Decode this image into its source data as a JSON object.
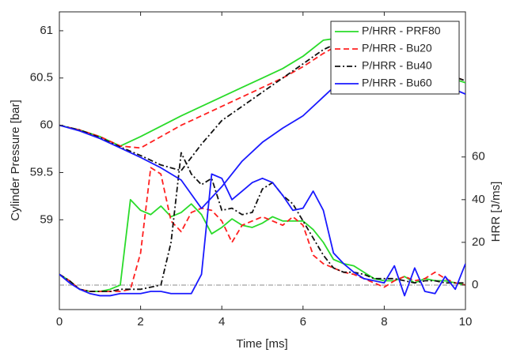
{
  "chart_data": {
    "type": "line",
    "xlabel": "Time [ms]",
    "ylabel": "Cylinder Pressure [bar]",
    "y2label": "HRR [J/ms]",
    "xlim": [
      0,
      10
    ],
    "xticks": [
      0,
      2,
      4,
      6,
      8,
      10
    ],
    "ylim": [
      58.05,
      61.2
    ],
    "yticks": [
      59,
      59.5,
      60,
      60.5,
      61
    ],
    "y2lim": [
      -11.5,
      128
    ],
    "y2ticks": [
      0,
      20,
      40,
      60
    ],
    "legend": "upper right",
    "x": [
      0,
      0.5,
      1,
      1.5,
      2,
      2.5,
      3,
      3.5,
      4,
      4.5,
      5,
      5.5,
      6,
      6.5,
      7,
      7.5,
      8,
      8.5,
      9,
      9.5,
      10
    ],
    "x2": [
      0,
      0.25,
      0.5,
      0.75,
      1,
      1.25,
      1.5,
      1.75,
      2,
      2.25,
      2.5,
      2.75,
      3,
      3.25,
      3.5,
      3.75,
      4,
      4.25,
      4.5,
      4.75,
      5,
      5.25,
      5.5,
      5.75,
      6,
      6.25,
      6.5,
      6.75,
      7,
      7.25,
      7.5,
      7.75,
      8,
      8.25,
      8.5,
      8.75,
      9,
      9.25,
      9.5,
      9.75,
      10
    ],
    "series": [
      {
        "name": "P/HRR - PRF80",
        "color": "#2adb2a",
        "dash": "solid",
        "values": [
          60,
          59.95,
          59.88,
          59.78,
          59.88,
          59.99,
          60.1,
          60.2,
          60.3,
          60.4,
          60.5,
          60.6,
          60.73,
          60.9,
          60.93,
          60.85,
          60.77,
          60.68,
          60.6,
          60.52,
          60.45
        ],
        "y2values": [
          5,
          2,
          -2,
          -3,
          -3,
          -2,
          0,
          40,
          35,
          33,
          37,
          32,
          34,
          38,
          33,
          24,
          27,
          31,
          28,
          27,
          29,
          32,
          30,
          30,
          30,
          26,
          20,
          12,
          10,
          9,
          6,
          3,
          2,
          2,
          4,
          1,
          3,
          2,
          2,
          1,
          0
        ]
      },
      {
        "name": "P/HRR - Bu20",
        "color": "#ff2020",
        "dash": "dashed",
        "values": [
          60,
          59.95,
          59.88,
          59.78,
          59.76,
          59.88,
          60.0,
          60.1,
          60.2,
          60.3,
          60.4,
          60.5,
          60.62,
          60.76,
          60.88,
          60.9,
          60.82,
          60.72,
          60.63,
          60.55,
          60.47
        ],
        "y2values": [
          5,
          2,
          -2,
          -3,
          -3,
          -3,
          -3,
          -2,
          15,
          55,
          52,
          30,
          25,
          34,
          36,
          35,
          30,
          20,
          28,
          30,
          32,
          30,
          28,
          32,
          28,
          14,
          10,
          8,
          6,
          5,
          3,
          1,
          -1,
          2,
          4,
          2,
          3,
          6,
          3,
          1,
          0
        ]
      },
      {
        "name": "P/HRR - Bu40",
        "color": "#111111",
        "dash": "dashdot",
        "values": [
          60,
          59.95,
          59.87,
          59.77,
          59.68,
          59.58,
          59.52,
          59.8,
          60.05,
          60.2,
          60.35,
          60.5,
          60.65,
          60.8,
          60.9,
          60.88,
          60.8,
          60.7,
          60.62,
          60.55,
          60.47
        ],
        "y2values": [
          5,
          2,
          -2,
          -3,
          -3,
          -3,
          -2,
          -2,
          -2,
          -1,
          0,
          20,
          62,
          52,
          47,
          50,
          35,
          36,
          33,
          34,
          45,
          48,
          42,
          38,
          30,
          22,
          14,
          8,
          6,
          6,
          5,
          3,
          3,
          3,
          2,
          1,
          2,
          2,
          1,
          1,
          1
        ]
      },
      {
        "name": "P/HRR - Bu60",
        "color": "#1a1aff",
        "dash": "solid",
        "values": [
          60,
          59.94,
          59.86,
          59.76,
          59.66,
          59.55,
          59.42,
          59.12,
          59.35,
          59.62,
          59.82,
          59.97,
          60.1,
          60.3,
          60.5,
          60.62,
          60.65,
          60.6,
          60.5,
          60.42,
          60.33
        ],
        "y2values": [
          5,
          1,
          -2,
          -4,
          -5,
          -5,
          -4,
          -4,
          -4,
          -3,
          -3,
          -4,
          -4,
          -4,
          5,
          52,
          50,
          40,
          44,
          48,
          50,
          48,
          42,
          35,
          36,
          44,
          35,
          15,
          10,
          6,
          3,
          2,
          1,
          9,
          -5,
          8,
          -3,
          -4,
          4,
          -2,
          10
        ]
      }
    ]
  }
}
